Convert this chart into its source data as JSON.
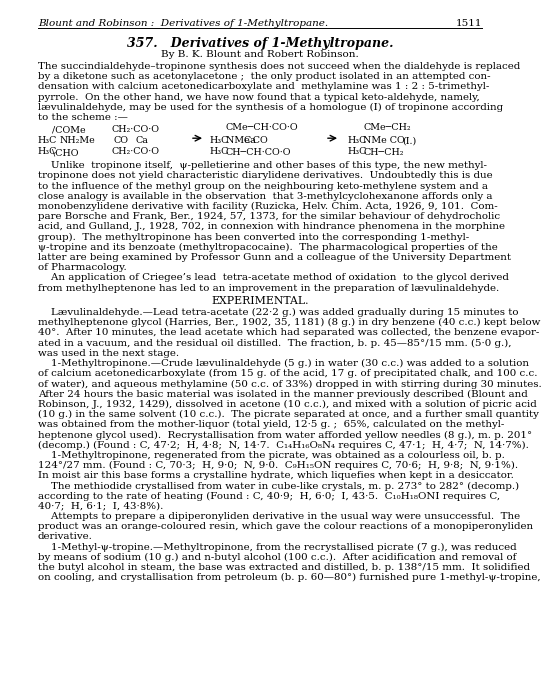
{
  "bg_color": "#ffffff",
  "text_color": "#000000",
  "header": "Blount and Robinson :  Derivatives of 1-Methyltropane.",
  "header_page": "1511",
  "title": "357.   Derivatives of 1-Methyltropane.",
  "authors": "By B. K. Blount and Robert Robinson.",
  "para1": [
    "The succindialdehyde–tropinone synthesis does not succeed when the dialdehyde is replaced",
    "by a diketone such as acetonylacetone ;  the only product isolated in an attempted con-",
    "densation with calcium acetonedicarboxylate and  methylamine was 1 : 2 : 5-trimethyl-",
    "pyrrole.  On the other hand, we have now found that a typical keto-aldehyde, namely,",
    "lævulinaldehyde, may be used for the synthesis of a homologue (I) of tropinone according",
    "to the scheme :—"
  ],
  "para2": [
    "    Unlike  tropinone itself,  ψ-pelletierine and other bases of this type, the new methyl-",
    "tropinone does not yield characteristic diarylidene derivatives.  Undoubtedly this is due",
    "to the influence of the methyl group on the neighbouring keto-methylene system and a",
    "close analogy is available in the observation  that 3-methylcyclohexanone affords only a",
    "monobenzylidene derivative with facility (Ruzicka, Helv. Chim. Acta, 1926, 9, 101.  Com-",
    "pare Borsche and Frank, Ber., 1924, 57, 1373, for the similar behaviour of dehydrocholic",
    "acid, and Gulland, J., 1928, 702, in connexion with hindrance phenomena in the morphine",
    "group).  The methyltropinone has been converted into the corresponding 1-methyl-",
    "ψ-tropine and its benzoate (methyltropacocaine).  The pharmacological properties of the",
    "latter are being examined by Professor Gunn and a colleague of the University Department",
    "of Pharmacology.",
    "    An application of Criegee’s lead  tetra-acetate method of oxidation  to the glycol derived",
    "from methylheptenone has led to an improvement in the preparation of lævulinaldehyde."
  ],
  "para3": [
    "    Lævulinaldehyde.—Lead tetra-acetate (22·2 g.) was added gradually during 15 minutes to",
    "methylheptenone glycol (Harries, Ber., 1902, 35, 1181) (8 g.) in dry benzene (40 c.c.) kept below",
    "40°.  After 10 minutes, the lead acetate which had separated was collected, the benzene evapor-",
    "ated in a vacuum, and the residual oil distilled.  The fraction, b. p. 45—85°/15 mm. (5·0 g.),",
    "was used in the next stage.",
    "    1-Methyltropinone.—Crude lævulinaldehyde (5 g.) in water (30 c.c.) was added to a solution",
    "of calcium acetonedicarboxylate (from 15 g. of the acid, 17 g. of precipitated chalk, and 100 c.c.",
    "of water), and aqueous methylamine (50 c.c. of 33%) dropped in with stirring during 30 minutes.",
    "After 24 hours the basic material was isolated in the manner previously described (Blount and",
    "Robinson, J., 1932, 1429), dissolved in acetone (10 c.c.), and mixed with a solution of picric acid",
    "(10 g.) in the same solvent (10 c.c.).  The picrate separated at once, and a further small quantity",
    "was obtained from the mother-liquor (total yield, 12·5 g. ;  65%, calculated on the methyl-",
    "heptenone glycol used).  Recrystallisation from water afforded yellow needles (8 g.), m. p. 201°",
    "(decomp.) (Found : C, 47·2;  H, 4·8;  N, 14·7.  C₁₄H₁₆O₈N₄ requires C, 47·1;  H, 4·7;  N, 14·7%).",
    "    1-Methyltropinone, regenerated from the picrate, was obtained as a colourless oil, b. p.",
    "124°/27 mm. (Found : C, 70·3;  H, 9·0;  N, 9·0.  C₉H₁₅ON requires C, 70·6;  H, 9·8;  N, 9·1%).",
    "In moist air this base forms a crystalline hydrate, which liquefies when kept in a desiccator.",
    "    The methiodide crystallised from water in cube-like crystals, m. p. 273° to 282° (decomp.)",
    "according to the rate of heating (Found : C, 40·9;  H, 6·0;  I, 43·5.  C₁₀H₁₈ONI requires C,",
    "40·7;  H, 6·1;  I, 43·8%).",
    "    Attempts to prepare a dipiperonyliden derivative in the usual way were unsuccessful.  The",
    "product was an orange-coloured resin, which gave the colour reactions of a monopiperonyliden",
    "derivative.",
    "    1-Methyl-ψ-tropine.—Methyltropinone, from the recrystallised picrate (7 g.), was reduced",
    "by means of sodium (10 g.) and n-butyl alcohol (100 c.c.).  After acidification and removal of",
    "the butyl alcohol in steam, the base was extracted and distilled, b. p. 138°/15 mm.  It solidified",
    "on cooling, and crystallisation from petroleum (b. p. 60—80°) furnished pure 1-methyl-ψ-tropine,"
  ]
}
